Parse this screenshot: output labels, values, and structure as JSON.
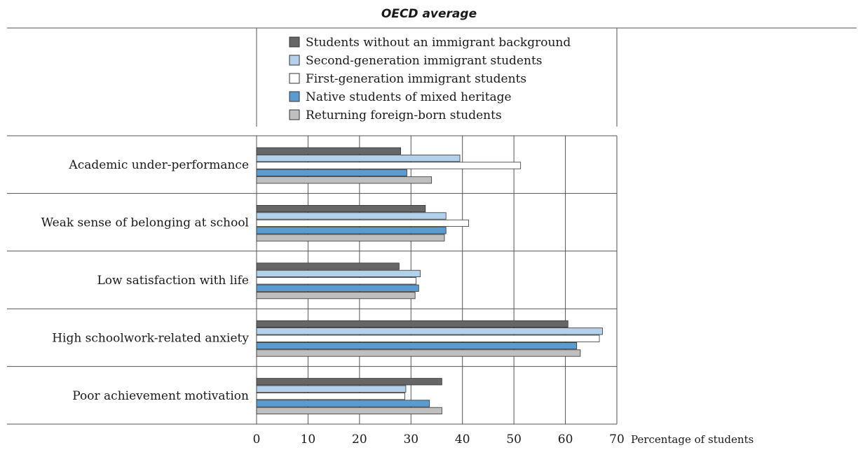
{
  "chart_data": {
    "type": "bar",
    "orientation": "horizontal",
    "subtitle": "OECD average",
    "xlabel": "Percentage of students",
    "xlim": [
      0,
      70
    ],
    "xticks": [
      0,
      10,
      20,
      30,
      40,
      50,
      60,
      70
    ],
    "grid": true,
    "legend_position": "top",
    "categories": [
      "Academic under-performance",
      "Weak sense of belonging at school",
      "Low satisfaction with life",
      "High schoolwork-related anxiety",
      "Poor achievement motivation"
    ],
    "series": [
      {
        "name": "Students without an immigrant background",
        "color": "#666666",
        "values": [
          28.0,
          32.8,
          27.7,
          60.5,
          36.0
        ]
      },
      {
        "name": "Second-generation immigrant students",
        "color": "#b3d1ea",
        "values": [
          39.5,
          36.8,
          31.8,
          67.2,
          29.0
        ]
      },
      {
        "name": "First-generation immigrant students",
        "color": "#ffffff",
        "values": [
          51.3,
          41.2,
          31.0,
          66.6,
          28.8
        ]
      },
      {
        "name": "Native students of mixed heritage",
        "color": "#5b9bd0",
        "values": [
          29.2,
          36.8,
          31.5,
          62.2,
          33.6
        ]
      },
      {
        "name": "Returning foreign-born students",
        "color": "#bfbfbf",
        "values": [
          34.0,
          36.5,
          30.8,
          62.9,
          36.0
        ]
      }
    ]
  }
}
